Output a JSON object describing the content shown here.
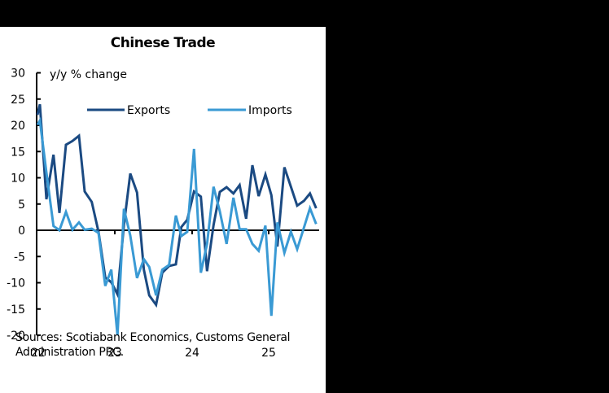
{
  "chart_data": {
    "type": "line",
    "title": "Chinese Trade",
    "ylabel": "y/y % change",
    "xlabel": "",
    "ylim": [
      -20,
      30
    ],
    "yticks": [
      30,
      25,
      20,
      15,
      10,
      5,
      0,
      -5,
      -10,
      -15,
      -20
    ],
    "xtick_labels": [
      "22",
      "23",
      "24",
      "25"
    ],
    "grid": false,
    "legend_position": "top-inside",
    "x": [
      46,
      49,
      57,
      65.7,
      73,
      81,
      89,
      97,
      104,
      112.7,
      121,
      129.3,
      136.7,
      144.3,
      152.2,
      160,
      168.3,
      176.7,
      183.3,
      191.7,
      199.3,
      207.7,
      216,
      222.7,
      230,
      238.3,
      246.7,
      254.3,
      262.3,
      270,
      278.3,
      286.7,
      294.3,
      302.3,
      310,
      317.7,
      326,
      333.3,
      340.7,
      349.3,
      357.3,
      365,
      373.3,
      380.7,
      388.3
    ],
    "series": [
      {
        "name": "Exports",
        "color": "#1b4a82",
        "values": [
          22.0,
          24.0,
          5.9,
          14.4,
          3.3,
          16.3,
          17.0,
          18.0,
          7.4,
          5.4,
          -0.3,
          -9.0,
          -9.9,
          -12.2,
          1.0,
          10.8,
          7.2,
          -7.5,
          -12.4,
          -14.2,
          -8.1,
          -6.8,
          -6.5,
          0.6,
          2.0,
          7.4,
          6.4,
          -7.8,
          1.0,
          7.3,
          8.2,
          7.0,
          8.6,
          2.2,
          12.4,
          6.5,
          10.6,
          6.7,
          -3.1,
          12.0,
          8.3,
          4.7,
          5.6,
          7.0,
          4.2
        ]
      },
      {
        "name": "Imports",
        "color": "#3a9ad4",
        "values": [
          20.1,
          20.9,
          11.0,
          0.8,
          0.0,
          3.5,
          0.1,
          1.5,
          0.1,
          0.3,
          -0.5,
          -10.6,
          -7.5,
          -20.0,
          4.1,
          -1.0,
          -9.1,
          -5.5,
          -7.0,
          -12.4,
          -7.5,
          -6.6,
          2.8,
          -1.1,
          -0.3,
          15.5,
          -8.1,
          -2.6,
          8.3,
          3.6,
          -2.6,
          6.2,
          0.2,
          0.2,
          -2.6,
          -3.9,
          0.9,
          -16.3,
          1.5,
          -4.3,
          -0.3,
          -3.6,
          0.5,
          4.2,
          1.2
        ]
      }
    ],
    "source": "Sources: Scotiabank Economics, Customs General Administration PRC."
  },
  "labels": {
    "title": "Chinese Trade",
    "ylabel": "y/y % change",
    "legend_exports": "Exports",
    "legend_imports": "Imports",
    "source_line1": "Sources: Scotiabank Economics, Customs General",
    "source_line2": "Administration PRC."
  }
}
